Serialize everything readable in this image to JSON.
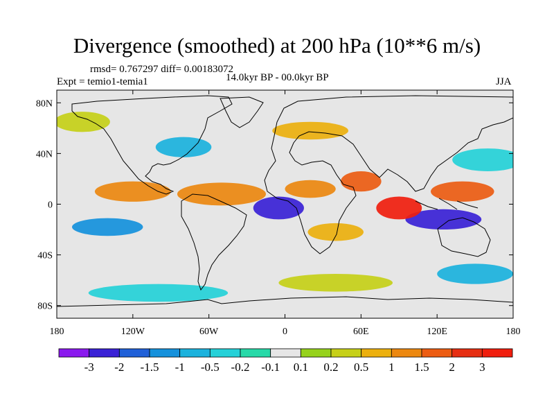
{
  "chart_data": {
    "type": "heatmap",
    "title": "Divergence (smoothed) at 200 hPa (10**6 m/s)",
    "stats_text": "rmsd= 0.767297 diff= 0.00183072",
    "experiment_label": "Expt = temio1-temia1",
    "period_label": "14.0kyr BP - 00.0kyr BP",
    "season_label": "JJA",
    "x_axis": {
      "range": [
        -180,
        180
      ],
      "ticks": [
        -180,
        -120,
        -60,
        0,
        60,
        120,
        180
      ],
      "tick_labels": [
        "180",
        "120W",
        "60W",
        "0",
        "60E",
        "120E",
        "180"
      ]
    },
    "y_axis": {
      "range": [
        -90,
        90
      ],
      "ticks": [
        80,
        40,
        0,
        -40,
        -80
      ],
      "tick_labels": [
        "80N",
        "40N",
        "0",
        "40S",
        "80S"
      ]
    },
    "colorbar": {
      "levels": [
        -3,
        -2,
        -1.5,
        -1,
        -0.5,
        -0.2,
        -0.1,
        0.1,
        0.2,
        0.5,
        1,
        1.5,
        2,
        3
      ],
      "labels": [
        "-3",
        "-2",
        "-1.5",
        "-1",
        "-0.5",
        "-0.2",
        "-0.1",
        "0.1",
        "0.2",
        "0.5",
        "1",
        "1.5",
        "2",
        "3"
      ],
      "colors": [
        "#8a19ee",
        "#3a22d6",
        "#2060d8",
        "#1591dc",
        "#1bb2dd",
        "#25d1d8",
        "#27d9a8",
        "#e6e6e6",
        "#96d21c",
        "#c6d018",
        "#ecb00e",
        "#ec8810",
        "#ec5c12",
        "#e62e12",
        "#f01e0e"
      ]
    },
    "field_blobs": [
      {
        "lon": -5,
        "lat": -3,
        "rx": 20,
        "ry": 9,
        "value": -3
      },
      {
        "lon": 125,
        "lat": -12,
        "rx": 30,
        "ry": 8,
        "value": -3
      },
      {
        "lon": 90,
        "lat": -3,
        "rx": 18,
        "ry": 9,
        "value": 3
      },
      {
        "lon": 60,
        "lat": 18,
        "rx": 16,
        "ry": 8,
        "value": 1.5
      },
      {
        "lon": 140,
        "lat": 10,
        "rx": 25,
        "ry": 8,
        "value": 1.5
      },
      {
        "lon": -120,
        "lat": 10,
        "rx": 30,
        "ry": 8,
        "value": 1
      },
      {
        "lon": -50,
        "lat": 8,
        "rx": 35,
        "ry": 9,
        "value": 1
      },
      {
        "lon": 20,
        "lat": 12,
        "rx": 20,
        "ry": 7,
        "value": 1
      },
      {
        "lon": -140,
        "lat": -18,
        "rx": 28,
        "ry": 7,
        "value": -1.5
      },
      {
        "lon": 40,
        "lat": -22,
        "rx": 22,
        "ry": 7,
        "value": 0.5
      },
      {
        "lon": 160,
        "lat": 35,
        "rx": 28,
        "ry": 9,
        "value": -0.5
      },
      {
        "lon": -80,
        "lat": 45,
        "rx": 22,
        "ry": 8,
        "value": -1
      },
      {
        "lon": 20,
        "lat": 58,
        "rx": 30,
        "ry": 7,
        "value": 0.5
      },
      {
        "lon": -160,
        "lat": 65,
        "rx": 22,
        "ry": 8,
        "value": 0.2
      },
      {
        "lon": 40,
        "lat": -62,
        "rx": 45,
        "ry": 7,
        "value": 0.2
      },
      {
        "lon": -100,
        "lat": -70,
        "rx": 55,
        "ry": 7,
        "value": -0.5
      },
      {
        "lon": 150,
        "lat": -55,
        "rx": 30,
        "ry": 8,
        "value": -1
      }
    ]
  }
}
